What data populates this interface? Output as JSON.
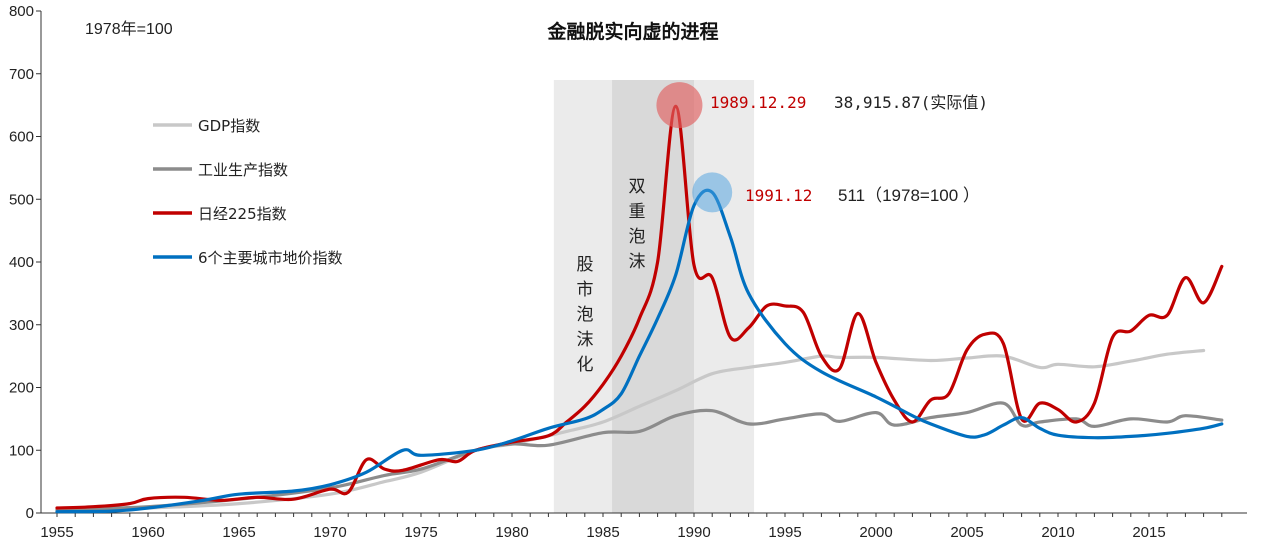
{
  "chart_data": {
    "type": "line",
    "title": "金融脱实向虚的进程",
    "note": "1978年=100",
    "xlim": [
      1955,
      2019.5
    ],
    "ylim": [
      0,
      800
    ],
    "x_ticks": [
      "1955",
      "1960",
      "1965",
      "1970",
      "1975",
      "1980",
      "1985",
      "1990",
      "1995",
      "2000",
      "2005",
      "2010",
      "2015"
    ],
    "y_ticks": [
      "0",
      "100",
      "200",
      "300",
      "400",
      "500",
      "600",
      "700",
      "800"
    ],
    "grid": false,
    "legend_position": "upper-left",
    "shaded_regions": [
      {
        "label": "股市泡沫化",
        "from": 1982.3,
        "to": 1993.3,
        "color": "#ebebeb"
      },
      {
        "label": "双重泡沫",
        "from": 1985.5,
        "to": 1990.0,
        "color": "#d9d9d9"
      }
    ],
    "series": [
      {
        "name": "GDP指数",
        "color": "#c8c8c8",
        "points": [
          [
            1955,
            5
          ],
          [
            1960,
            8
          ],
          [
            1965,
            15
          ],
          [
            1970,
            30
          ],
          [
            1973,
            50
          ],
          [
            1975,
            65
          ],
          [
            1978,
            100
          ],
          [
            1980,
            110
          ],
          [
            1983,
            130
          ],
          [
            1985,
            145
          ],
          [
            1987,
            170
          ],
          [
            1989,
            195
          ],
          [
            1991,
            222
          ],
          [
            1993,
            232
          ],
          [
            1995,
            240
          ],
          [
            1997,
            250
          ],
          [
            1998,
            248
          ],
          [
            2000,
            248
          ],
          [
            2003,
            243
          ],
          [
            2005,
            247
          ],
          [
            2007,
            250
          ],
          [
            2009,
            232
          ],
          [
            2010,
            237
          ],
          [
            2012,
            233
          ],
          [
            2014,
            242
          ],
          [
            2016,
            253
          ],
          [
            2018,
            259
          ]
        ]
      },
      {
        "name": "工业生产指数",
        "color": "#8c8c8c",
        "points": [
          [
            1955,
            5
          ],
          [
            1960,
            10
          ],
          [
            1965,
            22
          ],
          [
            1970,
            40
          ],
          [
            1973,
            60
          ],
          [
            1975,
            70
          ],
          [
            1978,
            100
          ],
          [
            1980,
            110
          ],
          [
            1982,
            108
          ],
          [
            1985,
            128
          ],
          [
            1987,
            130
          ],
          [
            1989,
            155
          ],
          [
            1991,
            163
          ],
          [
            1993,
            142
          ],
          [
            1995,
            150
          ],
          [
            1997,
            158
          ],
          [
            1998,
            146
          ],
          [
            2000,
            160
          ],
          [
            2001,
            140
          ],
          [
            2003,
            152
          ],
          [
            2005,
            160
          ],
          [
            2007,
            175
          ],
          [
            2008,
            140
          ],
          [
            2009,
            145
          ],
          [
            2011,
            150
          ],
          [
            2012,
            138
          ],
          [
            2014,
            150
          ],
          [
            2016,
            145
          ],
          [
            2017,
            155
          ],
          [
            2019,
            148
          ]
        ]
      },
      {
        "name": "日经225指数",
        "color": "#c00000",
        "points": [
          [
            1955,
            8
          ],
          [
            1957,
            10
          ],
          [
            1959,
            15
          ],
          [
            1960,
            23
          ],
          [
            1962,
            25
          ],
          [
            1964,
            20
          ],
          [
            1966,
            25
          ],
          [
            1968,
            22
          ],
          [
            1970,
            38
          ],
          [
            1971,
            33
          ],
          [
            1972,
            85
          ],
          [
            1973,
            70
          ],
          [
            1974,
            68
          ],
          [
            1976,
            85
          ],
          [
            1977,
            82
          ],
          [
            1978,
            100
          ],
          [
            1980,
            113
          ],
          [
            1982,
            123
          ],
          [
            1983,
            145
          ],
          [
            1984,
            170
          ],
          [
            1985,
            205
          ],
          [
            1986,
            250
          ],
          [
            1987,
            310
          ],
          [
            1988,
            400
          ],
          [
            1989,
            648
          ],
          [
            1990,
            395
          ],
          [
            1991,
            375
          ],
          [
            1992,
            280
          ],
          [
            1993,
            295
          ],
          [
            1994,
            330
          ],
          [
            1995,
            330
          ],
          [
            1996,
            320
          ],
          [
            1997,
            250
          ],
          [
            1998,
            230
          ],
          [
            1999,
            318
          ],
          [
            2000,
            240
          ],
          [
            2001,
            180
          ],
          [
            2002,
            145
          ],
          [
            2003,
            180
          ],
          [
            2004,
            190
          ],
          [
            2005,
            260
          ],
          [
            2006,
            285
          ],
          [
            2007,
            270
          ],
          [
            2008,
            150
          ],
          [
            2009,
            175
          ],
          [
            2010,
            165
          ],
          [
            2011,
            145
          ],
          [
            2012,
            175
          ],
          [
            2013,
            280
          ],
          [
            2014,
            290
          ],
          [
            2015,
            315
          ],
          [
            2016,
            315
          ],
          [
            2017,
            375
          ],
          [
            2018,
            335
          ],
          [
            2019,
            393
          ]
        ]
      },
      {
        "name": "6个主要城市地价指数",
        "color": "#0070c0",
        "points": [
          [
            1955,
            2
          ],
          [
            1958,
            3
          ],
          [
            1960,
            8
          ],
          [
            1963,
            20
          ],
          [
            1965,
            30
          ],
          [
            1968,
            35
          ],
          [
            1970,
            45
          ],
          [
            1972,
            65
          ],
          [
            1974,
            100
          ],
          [
            1975,
            92
          ],
          [
            1978,
            100
          ],
          [
            1980,
            115
          ],
          [
            1982,
            135
          ],
          [
            1984,
            150
          ],
          [
            1985,
            165
          ],
          [
            1986,
            190
          ],
          [
            1987,
            250
          ],
          [
            1988,
            310
          ],
          [
            1989,
            380
          ],
          [
            1990,
            490
          ],
          [
            1991,
            511
          ],
          [
            1992,
            440
          ],
          [
            1993,
            350
          ],
          [
            1995,
            270
          ],
          [
            1997,
            225
          ],
          [
            2000,
            185
          ],
          [
            2002,
            155
          ],
          [
            2003,
            142
          ],
          [
            2005,
            122
          ],
          [
            2006,
            125
          ],
          [
            2007,
            140
          ],
          [
            2008,
            152
          ],
          [
            2009,
            135
          ],
          [
            2010,
            124
          ],
          [
            2012,
            120
          ],
          [
            2014,
            122
          ],
          [
            2016,
            127
          ],
          [
            2018,
            135
          ],
          [
            2019,
            142
          ]
        ]
      }
    ],
    "annotations": [
      {
        "label_red": "1989.12.29",
        "label_dark": "38,915.87(实际值)",
        "x": 1989.2,
        "y": 650,
        "color": "#e06060"
      },
      {
        "label_red": "1991.12",
        "label_dark": "511（1978=100 ）",
        "x": 1991.0,
        "y": 511,
        "color": "#4a9fe0"
      }
    ]
  }
}
